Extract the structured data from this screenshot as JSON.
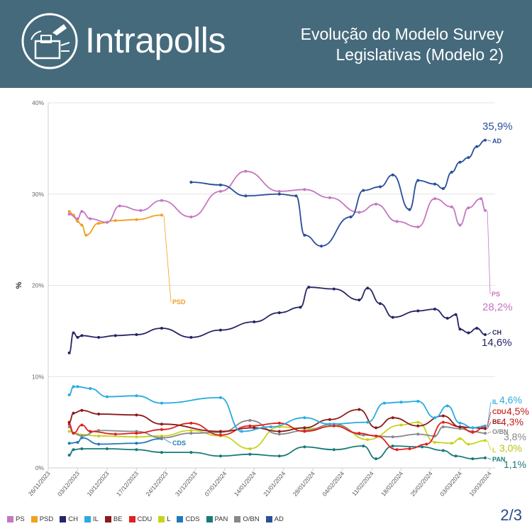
{
  "header": {
    "brand": "Intrapolls",
    "title_line1": "Evolução do Modelo Survey",
    "title_line2": "Legislativas (Modelo 2)",
    "background": "#456a7c"
  },
  "page_number": "2/3",
  "chart_data": {
    "type": "line",
    "ylabel": "%",
    "ylim": [
      0,
      40
    ],
    "yticks": [
      0,
      10,
      20,
      30,
      40
    ],
    "ytick_labels": [
      "0%",
      "10%",
      "20%",
      "30%",
      "40%"
    ],
    "x_range": [
      "2023-11-26",
      "2024-03-10"
    ],
    "x_ticks": [
      "2023-11-26",
      "2023-12-03",
      "2023-12-10",
      "2023-12-17",
      "2023-12-24",
      "2023-12-31",
      "2024-01-07",
      "2024-01-14",
      "2024-01-21",
      "2024-01-28",
      "2024-02-04",
      "2024-02-11",
      "2024-02-18",
      "2024-02-25",
      "2024-03-03",
      "2024-03-10"
    ],
    "x_tick_labels": [
      "26/11/2023",
      "03/12/2023",
      "10/12/2023",
      "17/12/2023",
      "24/12/2023",
      "31/12/2023",
      "07/01/2024",
      "14/01/2024",
      "21/01/2024",
      "28/01/2024",
      "04/02/2024",
      "11/02/2024",
      "18/02/2024",
      "25/02/2024",
      "03/03/2024",
      "10/03/2024"
    ],
    "series": [
      {
        "name": "PS",
        "color": "#c577c1",
        "x": [
          "2023-12-01",
          "2023-12-03",
          "2023-12-04",
          "2023-12-06",
          "2023-12-10",
          "2023-12-13",
          "2023-12-18",
          "2023-12-23",
          "2023-12-30",
          "2024-01-06",
          "2024-01-12",
          "2024-01-20",
          "2024-01-26",
          "2024-02-01",
          "2024-02-08",
          "2024-02-12",
          "2024-02-17",
          "2024-02-22",
          "2024-02-26",
          "2024-03-01",
          "2024-03-03",
          "2024-03-05",
          "2024-03-08",
          "2024-03-09"
        ],
        "values": [
          27.8,
          27.3,
          28.1,
          27.3,
          26.9,
          28.7,
          28.2,
          29.3,
          27.5,
          30.3,
          32.5,
          30.3,
          30.5,
          29.6,
          28.0,
          28.9,
          27.0,
          26.4,
          29.5,
          28.6,
          26.6,
          28.5,
          29.5,
          28.2
        ],
        "end_label": "PS",
        "end_value": "28,2%"
      },
      {
        "name": "PSD",
        "color": "#f0a020",
        "x": [
          "2023-12-01",
          "2023-12-02",
          "2023-12-03",
          "2023-12-04",
          "2023-12-05",
          "2023-12-08",
          "2023-12-12",
          "2023-12-17",
          "2023-12-23"
        ],
        "values": [
          28.1,
          27.7,
          27.0,
          26.6,
          25.5,
          26.8,
          27.1,
          27.2,
          27.7
        ],
        "end_label": "PSD"
      },
      {
        "name": "CH",
        "color": "#252567",
        "x": [
          "2023-12-01",
          "2023-12-02",
          "2023-12-03",
          "2023-12-04",
          "2023-12-08",
          "2023-12-12",
          "2023-12-17",
          "2023-12-23",
          "2023-12-30",
          "2024-01-06",
          "2024-01-14",
          "2024-01-20",
          "2024-01-25",
          "2024-01-27",
          "2024-02-02",
          "2024-02-08",
          "2024-02-10",
          "2024-02-13",
          "2024-02-16",
          "2024-02-22",
          "2024-02-26",
          "2024-02-29",
          "2024-03-02",
          "2024-03-03",
          "2024-03-05",
          "2024-03-07",
          "2024-03-09"
        ],
        "values": [
          12.6,
          14.8,
          14.3,
          14.5,
          14.3,
          14.5,
          14.6,
          15.3,
          14.3,
          15.1,
          16.0,
          17.0,
          17.6,
          19.8,
          19.6,
          18.4,
          19.7,
          18.0,
          16.5,
          17.2,
          17.4,
          16.4,
          16.8,
          15.2,
          14.8,
          15.3,
          14.6
        ],
        "end_label": "CH",
        "end_value": "14,6%"
      },
      {
        "name": "AD",
        "color": "#2a4f9a",
        "x": [
          "2023-12-30",
          "2024-01-06",
          "2024-01-12",
          "2024-01-20",
          "2024-01-24",
          "2024-01-26",
          "2024-01-30",
          "2024-02-06",
          "2024-02-09",
          "2024-02-13",
          "2024-02-16",
          "2024-02-20",
          "2024-02-22",
          "2024-02-26",
          "2024-02-28",
          "2024-03-01",
          "2024-03-03",
          "2024-03-05",
          "2024-03-07",
          "2024-03-09"
        ],
        "values": [
          31.3,
          31.0,
          29.8,
          30.0,
          29.8,
          25.5,
          24.3,
          27.5,
          30.4,
          30.8,
          32.1,
          28.3,
          31.5,
          31.1,
          30.6,
          32.4,
          33.5,
          34.0,
          35.2,
          35.9
        ],
        "end_label": "AD",
        "end_value": "35,9%"
      },
      {
        "name": "IL",
        "color": "#29abe2",
        "x": [
          "2023-12-01",
          "2023-12-02",
          "2023-12-03",
          "2023-12-06",
          "2023-12-10",
          "2023-12-17",
          "2023-12-23",
          "2024-01-06",
          "2024-01-11",
          "2024-01-18",
          "2024-01-26",
          "2024-02-01",
          "2024-02-10",
          "2024-02-14",
          "2024-02-18",
          "2024-02-22",
          "2024-02-26",
          "2024-02-29",
          "2024-03-03",
          "2024-03-06",
          "2024-03-09"
        ],
        "values": [
          8.0,
          8.9,
          8.9,
          8.7,
          7.8,
          7.9,
          7.1,
          7.7,
          4.0,
          4.5,
          5.5,
          4.8,
          5.0,
          7.1,
          7.2,
          7.3,
          5.5,
          6.8,
          4.9,
          4.4,
          4.6
        ],
        "end_label": "IL",
        "end_value": "4,6%"
      },
      {
        "name": "BE",
        "color": "#8b1a1a",
        "x": [
          "2023-12-01",
          "2023-12-02",
          "2023-12-04",
          "2023-12-08",
          "2023-12-17",
          "2023-12-23",
          "2024-01-06",
          "2024-01-14",
          "2024-01-20",
          "2024-01-26",
          "2024-02-01",
          "2024-02-08",
          "2024-02-12",
          "2024-02-16",
          "2024-02-22",
          "2024-02-28",
          "2024-03-03",
          "2024-03-06",
          "2024-03-09"
        ],
        "values": [
          5.0,
          6.0,
          6.3,
          5.9,
          5.8,
          4.8,
          4.0,
          4.4,
          4.0,
          4.4,
          5.3,
          6.4,
          4.4,
          5.5,
          4.6,
          5.7,
          4.5,
          4.4,
          4.3
        ],
        "end_label": "BE",
        "end_value": "4,3%"
      },
      {
        "name": "CDU",
        "color": "#e02020",
        "x": [
          "2023-12-01",
          "2023-12-02",
          "2023-12-04",
          "2023-12-06",
          "2023-12-12",
          "2023-12-17",
          "2023-12-23",
          "2023-12-30",
          "2024-01-06",
          "2024-01-13",
          "2024-01-20",
          "2024-01-26",
          "2024-02-02",
          "2024-02-08",
          "2024-02-12",
          "2024-02-17",
          "2024-02-20",
          "2024-02-24",
          "2024-02-28",
          "2024-03-03",
          "2024-03-06",
          "2024-03-09"
        ],
        "values": [
          4.8,
          3.8,
          4.7,
          4.0,
          3.7,
          3.8,
          4.2,
          4.9,
          3.6,
          4.6,
          4.9,
          4.0,
          4.6,
          3.8,
          3.5,
          2.0,
          2.1,
          2.6,
          5.0,
          4.5,
          3.9,
          4.5
        ],
        "end_label": "CDU",
        "end_value": "4,5%"
      },
      {
        "name": "L",
        "color": "#c8d21e",
        "x": [
          "2023-12-01",
          "2023-12-03",
          "2023-12-08",
          "2023-12-17",
          "2023-12-23",
          "2023-12-30",
          "2024-01-06",
          "2024-01-13",
          "2024-01-20",
          "2024-01-27",
          "2024-02-03",
          "2024-02-10",
          "2024-02-18",
          "2024-02-22",
          "2024-02-26",
          "2024-03-01",
          "2024-03-03",
          "2024-03-05",
          "2024-03-09"
        ],
        "values": [
          4.0,
          3.7,
          3.5,
          3.4,
          3.5,
          4.1,
          3.5,
          2.1,
          4.5,
          4.3,
          4.6,
          3.1,
          4.7,
          5.0,
          2.8,
          2.7,
          3.2,
          2.6,
          3.0
        ],
        "end_label": "L",
        "end_value": "3,0%"
      },
      {
        "name": "CDS",
        "color": "#1f7ab8",
        "x": [
          "2023-12-01",
          "2023-12-03",
          "2023-12-04",
          "2023-12-08",
          "2023-12-17",
          "2023-12-23"
        ],
        "values": [
          2.7,
          2.8,
          3.3,
          2.6,
          2.7,
          3.2
        ],
        "end_label": "CDS"
      },
      {
        "name": "PAN",
        "color": "#187a78",
        "x": [
          "2023-12-01",
          "2023-12-02",
          "2023-12-04",
          "2023-12-10",
          "2023-12-17",
          "2023-12-23",
          "2023-12-30",
          "2024-01-06",
          "2024-01-13",
          "2024-01-20",
          "2024-01-26",
          "2024-02-02",
          "2024-02-09",
          "2024-02-12",
          "2024-02-16",
          "2024-02-23",
          "2024-02-28",
          "2024-03-02",
          "2024-03-06",
          "2024-03-09"
        ],
        "values": [
          1.4,
          2.0,
          2.1,
          2.1,
          2.0,
          1.7,
          1.7,
          1.3,
          1.5,
          1.3,
          2.3,
          2.0,
          2.4,
          1.0,
          2.4,
          2.3,
          1.9,
          1.3,
          1.0,
          1.1
        ],
        "end_label": "PAN",
        "end_value": "1,1%"
      },
      {
        "name": "O/BN",
        "color": "#888888",
        "x": [
          "2023-12-01",
          "2023-12-02",
          "2023-12-04",
          "2023-12-08",
          "2023-12-17",
          "2023-12-23",
          "2023-12-30",
          "2024-01-06",
          "2024-01-13",
          "2024-01-20",
          "2024-01-26",
          "2024-02-02",
          "2024-02-09",
          "2024-02-16",
          "2024-02-22",
          "2024-02-26",
          "2024-02-28",
          "2024-03-03",
          "2024-03-06",
          "2024-03-09"
        ],
        "values": [
          4.5,
          3.8,
          3.5,
          4.1,
          4.0,
          3.3,
          3.8,
          3.9,
          5.2,
          3.7,
          4.1,
          4.8,
          3.6,
          3.4,
          3.7,
          3.5,
          4.5,
          4.3,
          4.0,
          3.8
        ],
        "end_label": "O/BN",
        "end_value": "3,8%"
      }
    ],
    "legend": [
      "PS",
      "PSD",
      "CH",
      "IL",
      "BE",
      "CDU",
      "L",
      "CDS",
      "PAN",
      "O/BN",
      "AD"
    ]
  }
}
